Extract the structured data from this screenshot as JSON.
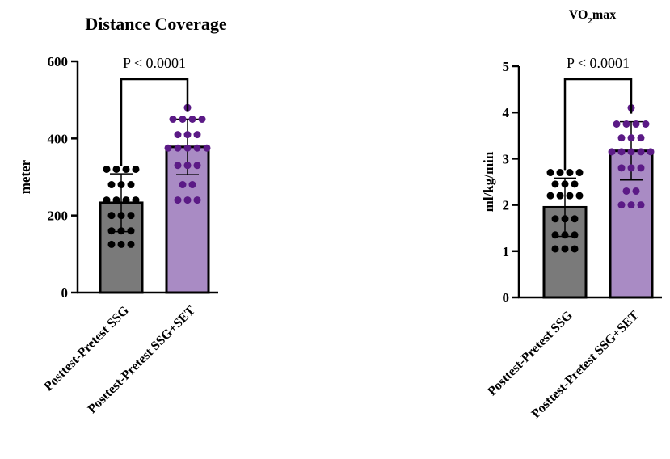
{
  "chart_data": [
    {
      "type": "bar",
      "title": "Distance Coverage",
      "ylabel": "meter",
      "ylim": [
        0,
        600
      ],
      "yticks": [
        "0",
        "200",
        "400",
        "600"
      ],
      "yticks_values": [
        0,
        200,
        400,
        600
      ],
      "categories": [
        "Posttest-Pretest SSG",
        "Posttest-Pretest SSG+SET"
      ],
      "values": [
        233,
        378
      ],
      "error_sd": [
        75,
        72
      ],
      "points": [
        [
          320,
          320,
          320,
          320,
          280,
          280,
          280,
          240,
          240,
          240,
          240,
          200,
          200,
          200,
          160,
          160,
          160,
          125,
          125,
          125
        ],
        [
          480,
          450,
          450,
          450,
          450,
          410,
          410,
          410,
          375,
          375,
          375,
          375,
          375,
          330,
          330,
          330,
          280,
          280,
          240,
          240,
          240
        ]
      ],
      "annotation": "P < 0.0001",
      "colors": {
        "bar1": "#7a7a7a",
        "bar2": "#a98bc4",
        "dots1": "#000000",
        "dots2": "#5b1a86"
      }
    },
    {
      "type": "bar",
      "title": "VO₂max",
      "ylabel": "ml/kg/min",
      "ylim": [
        0,
        5
      ],
      "yticks": [
        "0",
        "1",
        "2",
        "3",
        "4",
        "5"
      ],
      "yticks_values": [
        0,
        1,
        2,
        3,
        4,
        5
      ],
      "categories": [
        "Posttest-Pretest SSG",
        "Posttest-Pretest SSG+SET"
      ],
      "values": [
        1.95,
        3.17
      ],
      "error_sd": [
        0.63,
        0.63
      ],
      "points": [
        [
          2.7,
          2.7,
          2.7,
          2.7,
          2.45,
          2.45,
          2.45,
          2.2,
          2.2,
          2.2,
          2.2,
          1.7,
          1.7,
          1.7,
          1.35,
          1.35,
          1.35,
          1.05,
          1.05,
          1.05
        ],
        [
          4.1,
          3.75,
          3.75,
          3.75,
          3.75,
          3.45,
          3.45,
          3.45,
          3.15,
          3.15,
          3.15,
          3.15,
          3.15,
          2.8,
          2.8,
          2.8,
          2.3,
          2.3,
          2.0,
          2.0,
          2.0
        ]
      ],
      "annotation": "P < 0.0001",
      "colors": {
        "bar1": "#7a7a7a",
        "bar2": "#a98bc4",
        "dots1": "#000000",
        "dots2": "#5b1a86"
      }
    }
  ]
}
